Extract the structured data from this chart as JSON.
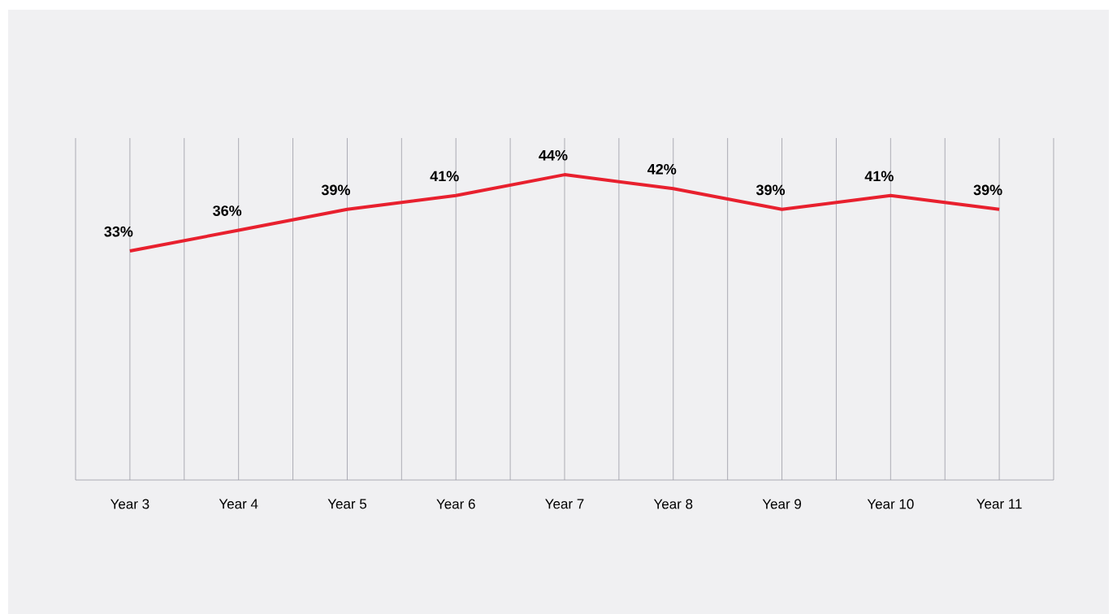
{
  "chart_data": {
    "type": "line",
    "categories": [
      "Year 3",
      "Year 4",
      "Year 5",
      "Year 6",
      "Year 7",
      "Year 8",
      "Year 9",
      "Year 10",
      "Year 11"
    ],
    "values": [
      33,
      36,
      39,
      41,
      44,
      42,
      39,
      41,
      39
    ],
    "value_labels": [
      "33%",
      "36%",
      "39%",
      "41%",
      "44%",
      "42%",
      "39%",
      "41%",
      "39%"
    ],
    "color": "#e8202e",
    "grid": "x",
    "marker": "none",
    "line_style": "solid"
  }
}
